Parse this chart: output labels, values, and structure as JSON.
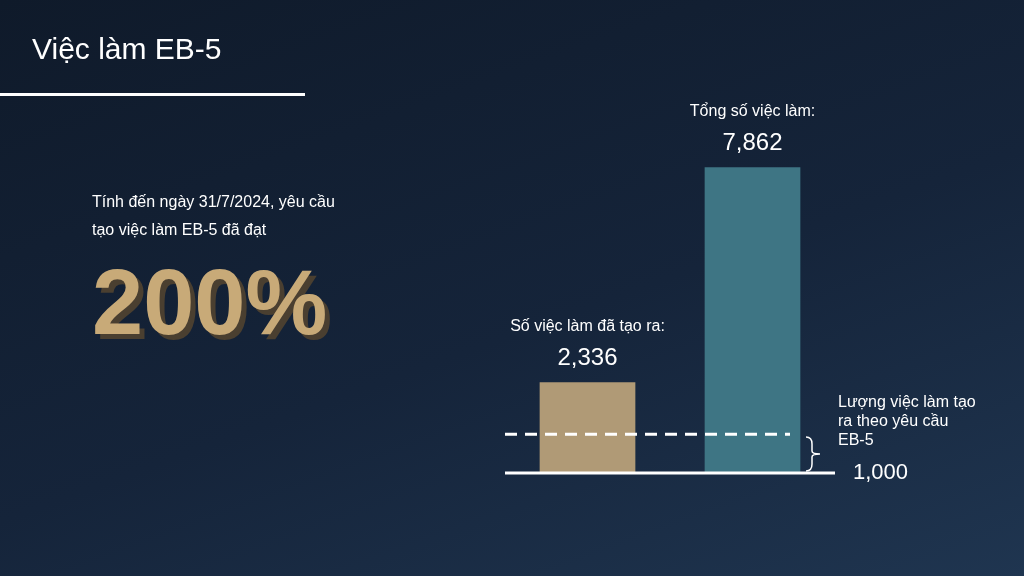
{
  "chart_data": {
    "type": "bar",
    "title": "Việc làm EB-5",
    "categories": [
      null,
      null
    ],
    "values": [
      2336,
      7862
    ],
    "colors": [
      "#b09a76",
      "#3e7584"
    ],
    "value_labels": [
      "2,336",
      "7,862"
    ],
    "legend": false,
    "ref_lines": [
      {
        "axis": "y",
        "value": 1000,
        "label": "1,000",
        "color": "#ffffff",
        "line_style": "dashed"
      }
    ],
    "annotations": [
      "Tính đến ngày 31/7/2024, yêu cầu tạo việc làm EB-5 đã đạt",
      "200%",
      "Lượng việc làm tạo ra theo yêu cầu EB-5",
      "Số việc làm đã tạo ra:",
      "Tổng số việc làm:"
    ]
  }
}
